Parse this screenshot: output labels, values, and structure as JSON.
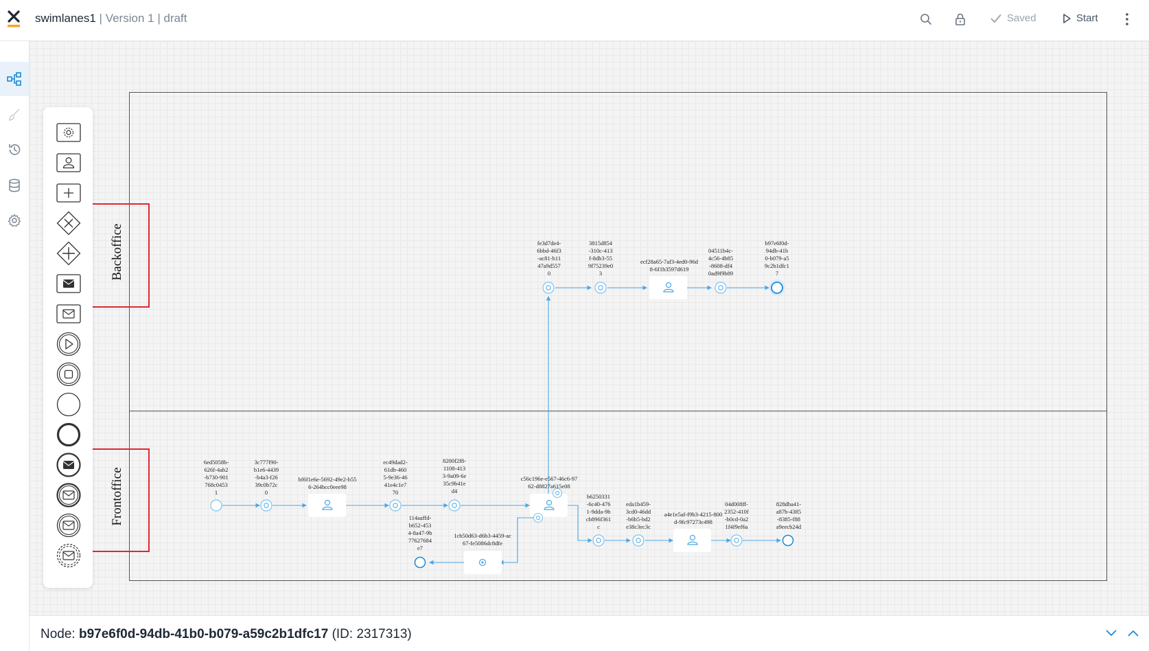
{
  "header": {
    "app_name": "swimlanes1",
    "separator1": "|",
    "version": "Version 1",
    "separator2": "|",
    "status": "draft",
    "saved_label": "Saved",
    "start_label": "Start"
  },
  "rail": {
    "items": [
      {
        "name": "process-diagram-icon",
        "active": true
      },
      {
        "name": "brush-icon",
        "active": false
      },
      {
        "name": "history-icon",
        "active": false
      },
      {
        "name": "database-icon",
        "active": false
      },
      {
        "name": "gear-icon",
        "active": false
      }
    ]
  },
  "palette": {
    "items": [
      "service-task-icon",
      "user-task-icon",
      "subprocess-icon",
      "exclusive-gateway-icon",
      "parallel-gateway-icon",
      "send-message-task-icon",
      "receive-message-task-icon",
      "start-event-icon",
      "stop-event-icon",
      "start-circle-icon",
      "end-circle-icon",
      "message-throw-event-icon",
      "message-catch-event-icon",
      "message-intermediate-event-icon",
      "message-boundary-event-icon"
    ]
  },
  "lanes": [
    {
      "label": "Backoffice"
    },
    {
      "label": "Frontoffice"
    }
  ],
  "nodes": {
    "b1": {
      "label": "fe3d7de4-\n6bbd-46f3\n-ac81-b11\n47a9d557\n0"
    },
    "b2": {
      "label": "3815d854\n-310c-413\nf-8db3-55\n9f75239e0\n3"
    },
    "b3": {
      "label": "ecf28a65-7af3-4ed0-96d\n8-6f1b3597d619"
    },
    "b4": {
      "label": "04511b4c-\n4c56-4b85\n-8608-df4\n0ad9f9b89"
    },
    "b5": {
      "label": "b97e6f0d-\n94db-41b\n0-b079-a5\n9c2b1dfc1\n7"
    },
    "f1": {
      "label": "6ed5058b-\n626f-4ab2\n-b730-901\n768c0453\n1"
    },
    "f2": {
      "label": "3c777f90-\nb1e6-4439\n-b4a3-f26\n39c0b72c\n0"
    },
    "f3": {
      "label": "bf6f1e6e-5692-49e2-b55\n6-264bcc0eee98"
    },
    "f4": {
      "label": "ec49dad2-\n61db-460\n5-9e36-46\n41e4c1e7\n70"
    },
    "f5": {
      "label": "8200f2f8-\n1108-413\n3-9a09-6e\n35c9b41e\nd4"
    },
    "f6": {
      "label": "c56c196e-e567-46c6-97\n62-d8827a615e08"
    },
    "f7": {
      "label": "114aaffd-\nb652-453\n4-8a47-9b\n77627684\ne7"
    },
    "f8": {
      "label": "1cb50d63-d6b3-4459-ac\n67-fe5086dc8dfe"
    },
    "f9": {
      "label": "b6250331\n-6c40-476\n1-9dda-9b\ncb896f361\nc"
    },
    "f10": {
      "label": "eda1b459-\n3cd0-46dd\n-b6b5-bd2\ne38c3ec3c"
    },
    "f11": {
      "label": "a4e1e5af-f9b3-4215-800\nd-9fc97273c498"
    },
    "f12": {
      "label": "04d008ff-\n2352-410f\n-b0cd-0a2\n1f4f9ef6a"
    },
    "f13": {
      "label": "828dba41-\na87b-4385\n-8385-f88\na9eecb24d"
    }
  },
  "footer": {
    "prefix": "Node:",
    "node_id": "b97e6f0d-94db-41b0-b079-a59c2b1dfc17",
    "suffix": "(ID: 2317313)"
  },
  "colors": {
    "accent": "#1c8ad6",
    "node_stroke": "#4aa8e6",
    "lane_highlight": "#e0262d",
    "logo_orange": "#f5a623"
  }
}
